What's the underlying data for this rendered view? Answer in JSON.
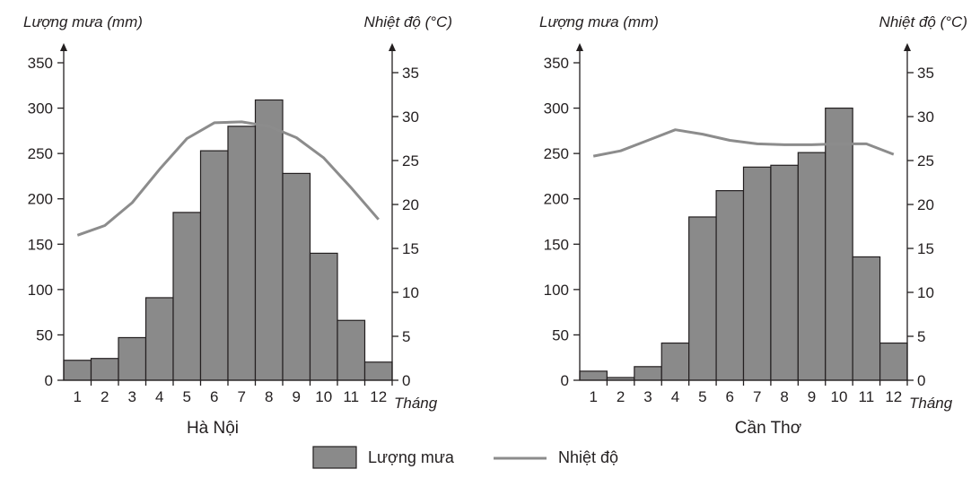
{
  "chart_data": [
    {
      "type": "bar",
      "city": "Hà Nội",
      "categories": [
        "1",
        "2",
        "3",
        "4",
        "5",
        "6",
        "7",
        "8",
        "9",
        "10",
        "11",
        "12"
      ],
      "xlabel": "Tháng",
      "ylabel_left": "Lượng mưa (mm)",
      "ylabel_right": "Nhiệt độ (°C)",
      "ylim_left": [
        0,
        350
      ],
      "yticks_left": [
        0,
        50,
        100,
        150,
        200,
        250,
        300,
        350
      ],
      "ylim_right": [
        0,
        35
      ],
      "yticks_right": [
        0,
        5,
        10,
        15,
        20,
        25,
        30,
        35
      ],
      "series": [
        {
          "name": "Lượng mưa",
          "kind": "bar",
          "axis": "left",
          "values": [
            22,
            24,
            47,
            91,
            185,
            253,
            280,
            309,
            228,
            140,
            66,
            20
          ]
        },
        {
          "name": "Nhiệt độ",
          "kind": "line",
          "axis": "right",
          "values": [
            16.5,
            17.6,
            20.2,
            24.0,
            27.5,
            29.3,
            29.4,
            28.9,
            27.6,
            25.3,
            21.9,
            18.3
          ]
        }
      ]
    },
    {
      "type": "bar",
      "city": "Cần Thơ",
      "categories": [
        "1",
        "2",
        "3",
        "4",
        "5",
        "6",
        "7",
        "8",
        "9",
        "10",
        "11",
        "12"
      ],
      "xlabel": "Tháng",
      "ylabel_left": "Lượng mưa (mm)",
      "ylabel_right": "Nhiệt độ (°C)",
      "ylim_left": [
        0,
        350
      ],
      "yticks_left": [
        0,
        50,
        100,
        150,
        200,
        250,
        300,
        350
      ],
      "ylim_right": [
        0,
        35
      ],
      "yticks_right": [
        0,
        5,
        10,
        15,
        20,
        25,
        30,
        35
      ],
      "series": [
        {
          "name": "Lượng mưa",
          "kind": "bar",
          "axis": "left",
          "values": [
            10,
            3,
            15,
            41,
            180,
            209,
            235,
            237,
            251,
            300,
            136,
            41
          ]
        },
        {
          "name": "Nhiệt độ",
          "kind": "line",
          "axis": "right",
          "values": [
            25.5,
            26.1,
            27.3,
            28.5,
            28.0,
            27.3,
            26.9,
            26.8,
            26.8,
            26.9,
            26.9,
            25.7
          ]
        }
      ]
    }
  ],
  "legend": {
    "bar_label": "Lượng mưa",
    "line_label": "Nhiệt độ",
    "bar_color": "#8a8a8a",
    "line_color": "#8c8c8c"
  }
}
